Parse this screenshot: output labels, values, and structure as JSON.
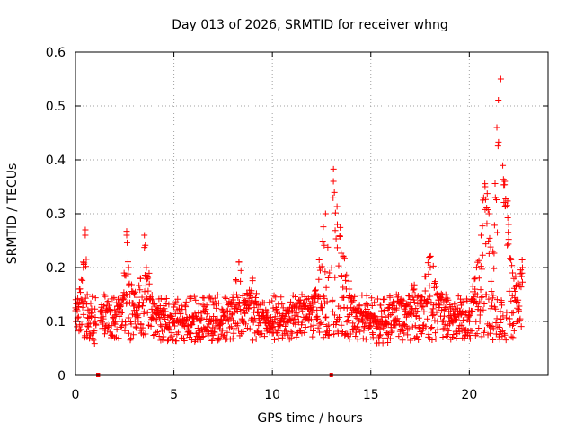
{
  "chart_data": {
    "type": "scatter",
    "title": "Day 013 of 2026, SRMTID for receiver whng",
    "xlabel": "GPS time / hours",
    "ylabel": "SRMTID / TECUs",
    "xlim": [
      0,
      24
    ],
    "ylim": [
      0,
      0.6
    ],
    "x_ticks": [
      0,
      5,
      10,
      15,
      20
    ],
    "x_tick_labels": [
      "0",
      "5",
      "10",
      "15",
      "20"
    ],
    "y_ticks": [
      0,
      0.1,
      0.2,
      0.3,
      0.4,
      0.5,
      0.6
    ],
    "y_tick_labels": [
      "0",
      "0.1",
      "0.2",
      "0.3",
      "0.4",
      "0.5",
      "0.6"
    ],
    "grid": true,
    "marker": "plus",
    "color": "#ff0000",
    "series": [
      {
        "name": "SRMTID",
        "x_range": [
          0,
          22.7
        ],
        "envelope_note": "Dense red plus markers; typical level 0.10-0.15 TECUs with scatter 0.05-0.2",
        "x": [
          0.0,
          0.2,
          0.4,
          0.5,
          0.6,
          0.8,
          1.0,
          1.3,
          1.6,
          2.0,
          2.4,
          2.6,
          2.7,
          3.0,
          3.3,
          3.5,
          3.6,
          3.9,
          4.3,
          4.8,
          5.2,
          5.6,
          6.0,
          6.5,
          7.0,
          7.5,
          8.0,
          8.3,
          8.6,
          9.0,
          9.3,
          9.7,
          10.0,
          10.5,
          11.0,
          11.5,
          12.0,
          12.4,
          12.7,
          12.9,
          13.1,
          13.3,
          13.6,
          13.9,
          14.3,
          14.7,
          15.1,
          15.5,
          15.9,
          16.3,
          16.8,
          17.2,
          17.6,
          18.0,
          18.4,
          18.8,
          19.2,
          19.6,
          20.0,
          20.3,
          20.6,
          20.8,
          21.0,
          21.2,
          21.4,
          21.6,
          21.8,
          22.0,
          22.2,
          22.5,
          22.7
        ],
        "y": [
          0.12,
          0.16,
          0.2,
          0.27,
          0.15,
          0.11,
          0.1,
          0.12,
          0.13,
          0.11,
          0.14,
          0.26,
          0.2,
          0.15,
          0.18,
          0.26,
          0.2,
          0.14,
          0.12,
          0.11,
          0.1,
          0.1,
          0.11,
          0.12,
          0.1,
          0.11,
          0.14,
          0.21,
          0.13,
          0.18,
          0.13,
          0.11,
          0.1,
          0.11,
          0.12,
          0.15,
          0.12,
          0.2,
          0.3,
          0.19,
          0.36,
          0.28,
          0.22,
          0.16,
          0.12,
          0.13,
          0.11,
          0.1,
          0.11,
          0.15,
          0.13,
          0.16,
          0.14,
          0.22,
          0.15,
          0.14,
          0.12,
          0.13,
          0.12,
          0.18,
          0.26,
          0.35,
          0.3,
          0.23,
          0.46,
          0.55,
          0.36,
          0.28,
          0.19,
          0.17,
          0.2
        ]
      }
    ],
    "gaps": [
      {
        "x_start": 1.05,
        "x_end": 1.25
      },
      {
        "x_start": 12.9,
        "x_end": 13.0
      }
    ]
  }
}
